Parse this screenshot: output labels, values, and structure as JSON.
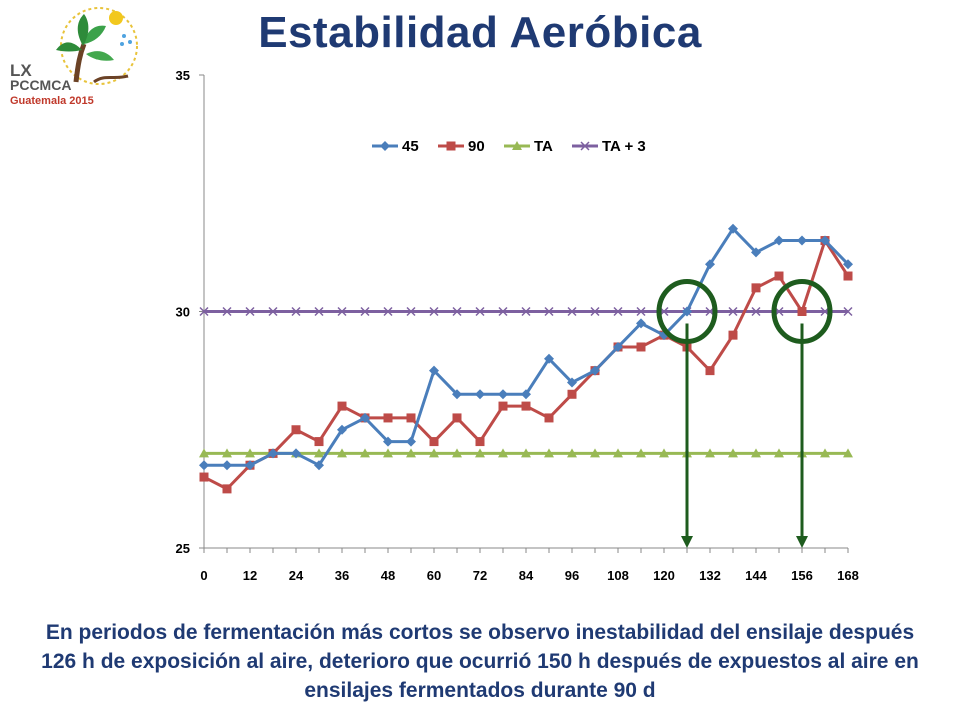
{
  "slide": {
    "title": "Estabilidad Aeróbica",
    "caption": "En periodos de fermentación más cortos se observo inestabilidad del ensilaje después 126 h de exposición al aire, deterioro que ocurrió 150 h después de expuestos al aire en ensilajes fermentados durante 90 d"
  },
  "logo": {
    "line1": "LX",
    "line2": "PCCMCA",
    "line3": "Guatemala 2015"
  },
  "chart_data": {
    "type": "line",
    "title": "",
    "xlabel": "",
    "ylabel": "",
    "x": [
      0,
      6,
      12,
      18,
      24,
      30,
      36,
      42,
      48,
      54,
      60,
      66,
      72,
      78,
      84,
      90,
      96,
      102,
      108,
      114,
      120,
      126,
      132,
      138,
      144,
      150,
      156,
      162,
      168
    ],
    "xticks": [
      0,
      12,
      24,
      36,
      48,
      60,
      72,
      84,
      96,
      108,
      120,
      132,
      144,
      156,
      168
    ],
    "xlim": [
      0,
      168
    ],
    "ylim": [
      25,
      35
    ],
    "yticks": [
      25,
      30,
      35
    ],
    "grid": false,
    "legend": "top",
    "series": [
      {
        "name": "45",
        "color": "#4A7EBB",
        "marker": "diamond",
        "values": [
          26.75,
          26.75,
          26.75,
          27.0,
          27.0,
          26.75,
          27.5,
          27.75,
          27.25,
          27.25,
          28.75,
          28.25,
          28.25,
          28.25,
          28.25,
          29.0,
          28.5,
          28.75,
          29.25,
          29.75,
          29.5,
          30.0,
          31.0,
          31.75,
          31.25,
          31.5,
          31.5,
          31.5,
          31.0
        ]
      },
      {
        "name": "90",
        "color": "#BE4B48",
        "marker": "square",
        "values": [
          26.5,
          26.25,
          26.75,
          27.0,
          27.5,
          27.25,
          28.0,
          27.75,
          27.75,
          27.75,
          27.25,
          27.75,
          27.25,
          28.0,
          28.0,
          27.75,
          28.25,
          28.75,
          29.25,
          29.25,
          29.5,
          29.25,
          28.75,
          29.5,
          30.5,
          30.75,
          30.0,
          31.5,
          30.75
        ]
      },
      {
        "name": "TA",
        "color": "#98B954",
        "marker": "triangle",
        "values": [
          27,
          27,
          27,
          27,
          27,
          27,
          27,
          27,
          27,
          27,
          27,
          27,
          27,
          27,
          27,
          27,
          27,
          27,
          27,
          27,
          27,
          27,
          27,
          27,
          27,
          27,
          27,
          27,
          27
        ]
      },
      {
        "name": "TA + 3",
        "color": "#7D60A0",
        "marker": "x",
        "values": [
          30,
          30,
          30,
          30,
          30,
          30,
          30,
          30,
          30,
          30,
          30,
          30,
          30,
          30,
          30,
          30,
          30,
          30,
          30,
          30,
          30,
          30,
          30,
          30,
          30,
          30,
          30,
          30,
          30
        ]
      }
    ],
    "annotations": [
      {
        "type": "circle-arrow",
        "x": 126,
        "y": 30,
        "color": "#1E5C1E"
      },
      {
        "type": "circle-arrow",
        "x": 156,
        "y": 30,
        "color": "#1E5C1E"
      }
    ]
  }
}
